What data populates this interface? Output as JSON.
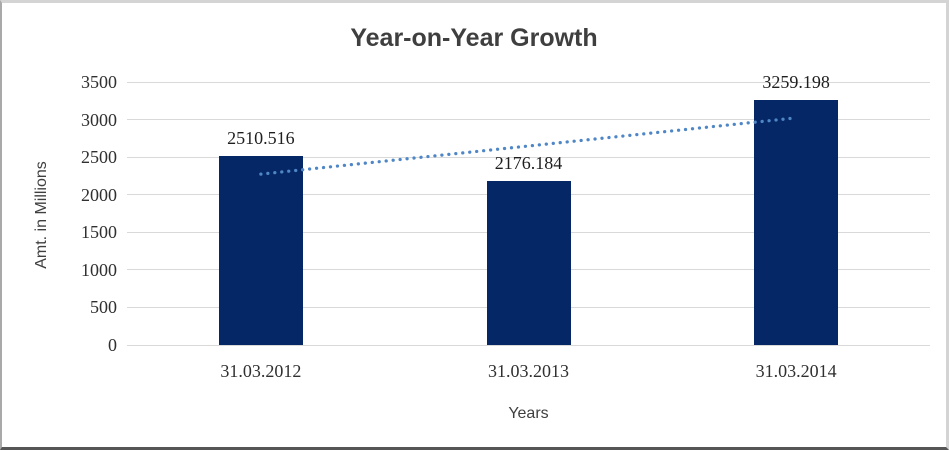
{
  "chart_data": {
    "type": "bar",
    "title": "Year-on-Year Growth",
    "xlabel": "Years",
    "ylabel": "Amt. in Millions",
    "categories": [
      "31.03.2012",
      "31.03.2013",
      "31.03.2014"
    ],
    "values": [
      2510.516,
      2176.184,
      3259.198
    ],
    "data_labels": [
      "2510.516",
      "2176.184",
      "3259.198"
    ],
    "ylim": [
      0,
      3500
    ],
    "yticks": [
      0,
      500,
      1000,
      1500,
      2000,
      2500,
      3000,
      3500
    ],
    "grid": true,
    "legend": "none",
    "trendline": {
      "type": "linear",
      "style": "dotted",
      "start_value": 2274,
      "end_value": 3023
    }
  },
  "colors": {
    "bar": "#062765",
    "trendline": "#4e86c6",
    "gridline": "#d9d9d9",
    "title_text": "#3f3f3f",
    "tick_text": "#303030",
    "data_label_text": "#1f1f1f",
    "border_light": "#d4d4d4",
    "border_mid": "#a9a9a9",
    "border_dark": "#565656"
  }
}
